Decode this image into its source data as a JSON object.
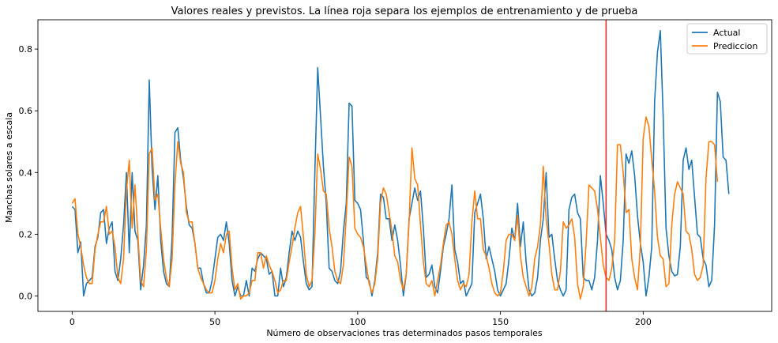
{
  "chart_data": {
    "type": "line",
    "title": "Valores reales y previstos. La línea roja separa los ejemplos de entrenamiento y de prueba",
    "xlabel": "Número de observaciones tras determinados pasos temporales",
    "ylabel": "Manchas solares a escala",
    "xlim": [
      -12,
      245
    ],
    "ylim": [
      -0.05,
      0.895
    ],
    "x_ticks": [
      0,
      50,
      100,
      150,
      200
    ],
    "y_ticks": [
      0.0,
      0.2,
      0.4,
      0.6,
      0.8
    ],
    "x_tick_labels": [
      "0",
      "50",
      "100",
      "150",
      "200"
    ],
    "y_tick_labels": [
      "0.0",
      "0.2",
      "0.4",
      "0.6",
      "0.8"
    ],
    "split_line_x": 187,
    "split_line_color": "#e8302a",
    "legend_position": "top-right",
    "grid": false,
    "series": [
      {
        "name": "Actual",
        "color": "#1f77b4",
        "values": [
          0.29,
          0.28,
          0.14,
          0.175,
          0.0,
          0.04,
          0.05,
          0.06,
          0.16,
          0.19,
          0.27,
          0.28,
          0.17,
          0.22,
          0.24,
          0.08,
          0.05,
          0.12,
          0.23,
          0.4,
          0.14,
          0.4,
          0.21,
          0.18,
          0.02,
          0.1,
          0.23,
          0.7,
          0.41,
          0.28,
          0.39,
          0.18,
          0.08,
          0.04,
          0.03,
          0.19,
          0.53,
          0.545,
          0.44,
          0.38,
          0.29,
          0.23,
          0.22,
          0.17,
          0.09,
          0.09,
          0.04,
          0.01,
          0.01,
          0.05,
          0.12,
          0.19,
          0.2,
          0.18,
          0.24,
          0.17,
          0.05,
          0.0,
          0.03,
          0.0,
          0.0,
          0.05,
          0.0,
          0.09,
          0.08,
          0.12,
          0.14,
          0.13,
          0.12,
          0.07,
          0.08,
          0.0,
          0.0,
          0.09,
          0.03,
          0.06,
          0.14,
          0.21,
          0.18,
          0.21,
          0.19,
          0.11,
          0.04,
          0.02,
          0.03,
          0.4,
          0.74,
          0.58,
          0.42,
          0.3,
          0.09,
          0.08,
          0.05,
          0.04,
          0.08,
          0.21,
          0.3,
          0.625,
          0.615,
          0.31,
          0.3,
          0.28,
          0.18,
          0.06,
          0.05,
          0.0,
          0.05,
          0.14,
          0.33,
          0.32,
          0.25,
          0.25,
          0.18,
          0.23,
          0.18,
          0.1,
          0.0,
          0.07,
          0.25,
          0.3,
          0.35,
          0.31,
          0.34,
          0.22,
          0.06,
          0.07,
          0.1,
          0.03,
          0.01,
          0.08,
          0.16,
          0.2,
          0.25,
          0.36,
          0.15,
          0.11,
          0.04,
          0.05,
          0.0,
          0.02,
          0.04,
          0.27,
          0.3,
          0.33,
          0.25,
          0.12,
          0.16,
          0.12,
          0.08,
          0.02,
          0.0,
          0.02,
          0.04,
          0.12,
          0.22,
          0.18,
          0.3,
          0.16,
          0.24,
          0.11,
          0.02,
          0.0,
          0.01,
          0.06,
          0.18,
          0.25,
          0.4,
          0.19,
          0.2,
          0.12,
          0.05,
          0.02,
          0.0,
          0.02,
          0.28,
          0.32,
          0.33,
          0.27,
          0.25,
          0.06,
          0.05,
          0.05,
          0.02,
          0.06,
          0.18,
          0.39,
          0.3,
          0.2,
          0.18,
          0.15,
          0.06,
          0.02,
          0.05,
          0.18,
          0.46,
          0.43,
          0.47,
          0.39,
          0.26,
          0.17,
          0.11,
          0.0,
          0.06,
          0.16,
          0.63,
          0.79,
          0.86,
          0.58,
          0.22,
          0.13,
          0.08,
          0.065,
          0.07,
          0.16,
          0.44,
          0.48,
          0.41,
          0.44,
          0.32,
          0.2,
          0.19,
          0.12,
          0.1,
          0.03,
          0.05,
          0.23,
          0.66,
          0.63,
          0.45,
          0.44,
          0.33
        ]
      },
      {
        "name": "Prediccion",
        "color": "#ff7f0e",
        "values": [
          0.3,
          0.315,
          0.2,
          0.16,
          0.1,
          0.06,
          0.04,
          0.04,
          0.15,
          0.2,
          0.24,
          0.24,
          0.29,
          0.2,
          0.21,
          0.16,
          0.06,
          0.04,
          0.12,
          0.34,
          0.44,
          0.22,
          0.36,
          0.2,
          0.05,
          0.03,
          0.15,
          0.46,
          0.48,
          0.31,
          0.33,
          0.22,
          0.12,
          0.06,
          0.03,
          0.12,
          0.36,
          0.5,
          0.43,
          0.4,
          0.27,
          0.24,
          0.24,
          0.17,
          0.09,
          0.06,
          0.04,
          0.02,
          0.01,
          0.01,
          0.05,
          0.12,
          0.17,
          0.14,
          0.2,
          0.21,
          0.09,
          0.02,
          0.04,
          -0.01,
          0.0,
          0.0,
          0.01,
          0.05,
          0.05,
          0.14,
          0.14,
          0.09,
          0.13,
          0.1,
          0.08,
          0.05,
          0.01,
          0.02,
          0.05,
          0.05,
          0.11,
          0.16,
          0.22,
          0.27,
          0.29,
          0.19,
          0.07,
          0.03,
          0.05,
          0.2,
          0.46,
          0.41,
          0.34,
          0.33,
          0.22,
          0.16,
          0.08,
          0.05,
          0.04,
          0.1,
          0.26,
          0.45,
          0.42,
          0.22,
          0.2,
          0.19,
          0.16,
          0.1,
          0.04,
          0.01,
          0.04,
          0.12,
          0.3,
          0.35,
          0.33,
          0.27,
          0.21,
          0.13,
          0.11,
          0.05,
          0.02,
          0.07,
          0.24,
          0.48,
          0.38,
          0.36,
          0.23,
          0.11,
          0.04,
          0.03,
          0.05,
          0.0,
          0.05,
          0.1,
          0.17,
          0.23,
          0.24,
          0.2,
          0.12,
          0.05,
          0.02,
          0.04,
          0.03,
          0.07,
          0.24,
          0.34,
          0.25,
          0.25,
          0.15,
          0.13,
          0.09,
          0.04,
          0.01,
          0.0,
          0.01,
          0.08,
          0.18,
          0.2,
          0.2,
          0.18,
          0.26,
          0.13,
          0.06,
          0.03,
          0.0,
          0.03,
          0.12,
          0.16,
          0.23,
          0.42,
          0.25,
          0.17,
          0.07,
          0.02,
          0.02,
          0.08,
          0.24,
          0.22,
          0.23,
          0.25,
          0.19,
          0.04,
          -0.01,
          0.03,
          0.17,
          0.36,
          0.35,
          0.34,
          0.28,
          0.19,
          0.1,
          0.06,
          0.05,
          0.09,
          0.18,
          0.49,
          0.49,
          0.4,
          0.27,
          0.28,
          0.12,
          0.06,
          0.02,
          0.16,
          0.51,
          0.58,
          0.55,
          0.44,
          0.34,
          0.19,
          0.13,
          0.12,
          0.03,
          0.04,
          0.23,
          0.33,
          0.37,
          0.35,
          0.33,
          0.21,
          0.2,
          0.15,
          0.07,
          0.05,
          0.06,
          0.1,
          0.38,
          0.5,
          0.5,
          0.49,
          0.37
        ]
      }
    ]
  }
}
